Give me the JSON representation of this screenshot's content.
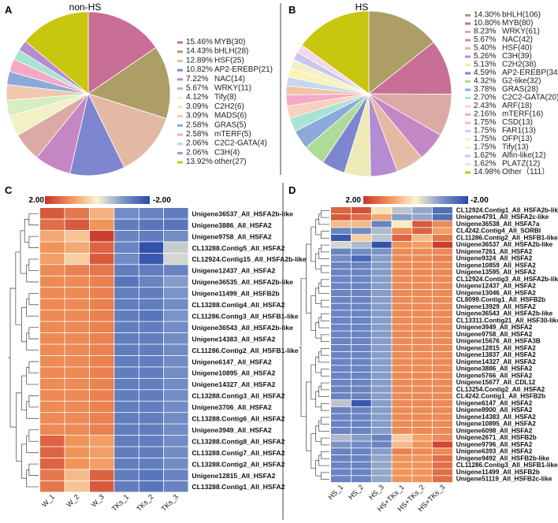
{
  "panels": {
    "A": "A",
    "B": "B",
    "C": "C",
    "D": "D"
  },
  "chart_data": [
    {
      "type": "pie",
      "panel": "A",
      "title": "non-HS",
      "slices": [
        {
          "pct": "15.46%",
          "name": "MYB(30)",
          "value": 15.46,
          "color": "#c96e96"
        },
        {
          "pct": "14.43%",
          "name": "bHLH(28)",
          "value": 14.43,
          "color": "#ad9e68"
        },
        {
          "pct": "12.89%",
          "name": "HSF(25)",
          "value": 12.89,
          "color": "#e4b9a3"
        },
        {
          "pct": "10.82%",
          "name": "AP2-EREBP(21)",
          "value": 10.82,
          "color": "#7e86cf"
        },
        {
          "pct": "7.22%",
          "name": "NAC(14)",
          "value": 7.22,
          "color": "#c487c4"
        },
        {
          "pct": "5.67%",
          "name": "WRKY(11)",
          "value": 5.67,
          "color": "#dbaaa7"
        },
        {
          "pct": "4.12%",
          "name": "Tify(8)",
          "value": 4.12,
          "color": "#f4f0c6"
        },
        {
          "pct": "3.09%",
          "name": "C2H2(6)",
          "value": 3.09,
          "color": "#d7eebf"
        },
        {
          "pct": "3.09%",
          "name": "MADS(6)",
          "value": 3.09,
          "color": "#f1c7b0"
        },
        {
          "pct": "2.58%",
          "name": "GRAS(5)",
          "value": 2.58,
          "color": "#8caad9"
        },
        {
          "pct": "2.58%",
          "name": "mTERF(5)",
          "value": 2.58,
          "color": "#f3aac6"
        },
        {
          "pct": "2.06%",
          "name": "C2C2-GATA(4)",
          "value": 2.06,
          "color": "#a9e3d3"
        },
        {
          "pct": "2.06%",
          "name": "C3H(4)",
          "value": 2.06,
          "color": "#b58cd1"
        },
        {
          "pct": "13.92%",
          "name": "other(27)",
          "value": 13.92,
          "color": "#c8c60e"
        }
      ]
    },
    {
      "type": "pie",
      "panel": "B",
      "title": "HS",
      "slices": [
        {
          "pct": "14.30%",
          "name": "bHLH(106)",
          "value": 14.3,
          "color": "#ad9e68"
        },
        {
          "pct": "10.80%",
          "name": "MYB(80)",
          "value": 10.8,
          "color": "#c96e96"
        },
        {
          "pct": "8.23%",
          "name": "WRKY(61)",
          "value": 8.23,
          "color": "#dbaaa7"
        },
        {
          "pct": "5.67%",
          "name": "NAC(42)",
          "value": 5.67,
          "color": "#c487c4"
        },
        {
          "pct": "5.40%",
          "name": "HSF(40)",
          "value": 5.4,
          "color": "#e4b9a3"
        },
        {
          "pct": "5.26%",
          "name": "C3H(39)",
          "value": 5.26,
          "color": "#b58cd1"
        },
        {
          "pct": "5.13%",
          "name": "C2H2(38)",
          "value": 5.13,
          "color": "#ecebb5"
        },
        {
          "pct": "4.59%",
          "name": "AP2-EREBP(34)",
          "value": 4.59,
          "color": "#7e86cf"
        },
        {
          "pct": "4.32%",
          "name": "G2-like(32)",
          "value": 4.32,
          "color": "#aedb9a"
        },
        {
          "pct": "3.78%",
          "name": "GRAS(28)",
          "value": 3.78,
          "color": "#8caad9"
        },
        {
          "pct": "2.70%",
          "name": "C2C2-GATA(20)",
          "value": 2.7,
          "color": "#a9e3d3"
        },
        {
          "pct": "2.43%",
          "name": "ARF(18)",
          "value": 2.43,
          "color": "#f6d1bd"
        },
        {
          "pct": "2.16%",
          "name": "mTERF(16)",
          "value": 2.16,
          "color": "#f3aac6"
        },
        {
          "pct": "1.75%",
          "name": "CSD(13)",
          "value": 1.75,
          "color": "#f0c3a8"
        },
        {
          "pct": "1.75%",
          "name": "FAR1(13)",
          "value": 1.75,
          "color": "#c5d8ee"
        },
        {
          "pct": "1.75%",
          "name": "OFP(13)",
          "value": 1.75,
          "color": "#f7f3b6"
        },
        {
          "pct": "1.75%",
          "name": "Tify(13)",
          "value": 1.75,
          "color": "#f4f0c6"
        },
        {
          "pct": "1.62%",
          "name": "Alfin-like(12)",
          "value": 1.62,
          "color": "#c9c6ee"
        },
        {
          "pct": "1.62%",
          "name": "PLATZ(12)",
          "value": 1.62,
          "color": "#f2d9ea"
        },
        {
          "pct": "14.98%",
          "name": "Other（111）",
          "value": 14.98,
          "color": "#c8c60e"
        }
      ]
    },
    {
      "type": "heatmap",
      "panel": "C",
      "color_scale": {
        "max_label": "2.00",
        "min_label": "-2.00",
        "max": 2,
        "min": -2
      },
      "columns": [
        "W_1",
        "W_2",
        "W_3",
        "TKs_1",
        "TKs_2",
        "TKs_3"
      ],
      "rows": [
        {
          "label": "Unigene36537_All_HSFA2b-like",
          "values": [
            1.6,
            1.3,
            0.7,
            -1.1,
            -1.2,
            -1.3
          ]
        },
        {
          "label": "Unigene3886_All_HSFA2",
          "values": [
            1.4,
            1.6,
            1.0,
            -1.3,
            -1.4,
            -1.4
          ]
        },
        {
          "label": "Unigene9758_All_HSFA2",
          "values": [
            0.8,
            0.5,
            1.9,
            -1.2,
            -1.3,
            -1.1
          ]
        },
        {
          "label": "CL13288.Contig5_All_HSFA2",
          "values": [
            1.0,
            0.8,
            1.5,
            -1.2,
            -1.9,
            -0.4
          ]
        },
        {
          "label": "CL12924.Contig15_All_HSFA2b-like",
          "values": [
            0.9,
            0.4,
            1.6,
            -1.1,
            -1.8,
            -0.3
          ]
        },
        {
          "label": "Unigene12437_All_HSFA2",
          "values": [
            1.1,
            1.2,
            1.3,
            -1.3,
            -1.3,
            -1.2
          ]
        },
        {
          "label": "Unigene36535_All_HSFA2b-like",
          "values": [
            1.1,
            1.1,
            1.2,
            -1.4,
            -1.2,
            -0.9
          ]
        },
        {
          "label": "Unigene11499_All_HSFB2b",
          "values": [
            1.1,
            1.1,
            1.2,
            -1.3,
            -1.3,
            -1.0
          ]
        },
        {
          "label": "CL13288.Contig4_All_HSFA2",
          "values": [
            1.1,
            1.1,
            1.2,
            -1.3,
            -1.3,
            -1.1
          ]
        },
        {
          "label": "CL11286.Contig3_All_HSFB1-like",
          "values": [
            1.1,
            1.1,
            1.2,
            -1.3,
            -1.4,
            -1.0
          ]
        },
        {
          "label": "Unigene36543_All_HSFA2b-like",
          "values": [
            1.1,
            1.1,
            1.2,
            -1.3,
            -1.3,
            -1.1
          ]
        },
        {
          "label": "Unigene14383_All_HSFA2",
          "values": [
            1.1,
            1.1,
            1.2,
            -1.3,
            -1.3,
            -1.1
          ]
        },
        {
          "label": "CL11286.Contig2_All_HSFB1-like",
          "values": [
            1.1,
            1.1,
            1.2,
            -1.3,
            -1.3,
            -1.1
          ]
        },
        {
          "label": "Unigene6147_All_HSFA2",
          "values": [
            1.1,
            1.1,
            1.2,
            -1.3,
            -1.3,
            -1.1
          ]
        },
        {
          "label": "Unigene10895_All_HSFA2",
          "values": [
            1.1,
            1.1,
            1.2,
            -1.3,
            -1.3,
            -1.1
          ]
        },
        {
          "label": "Unigene14327_All_HSFA2",
          "values": [
            1.1,
            1.1,
            1.2,
            -1.3,
            -1.3,
            -1.1
          ]
        },
        {
          "label": "CL13288.Contig3_All_HSFA2",
          "values": [
            1.1,
            1.1,
            1.2,
            -1.3,
            -1.3,
            -1.1
          ]
        },
        {
          "label": "Unigene3706_All_HSFA2",
          "values": [
            1.1,
            1.1,
            1.2,
            -1.3,
            -1.3,
            -1.1
          ]
        },
        {
          "label": "CL13288.Contig6_All_HSFA2",
          "values": [
            1.1,
            1.1,
            1.2,
            -1.3,
            -1.3,
            -1.1
          ]
        },
        {
          "label": "Unigene3949_All_HSFA2",
          "values": [
            1.1,
            1.1,
            1.2,
            -1.3,
            -1.3,
            -1.1
          ]
        },
        {
          "label": "CL13288.Contig8_All_HSFA2",
          "values": [
            1.5,
            1.0,
            0.9,
            -1.3,
            -1.3,
            -1.1
          ]
        },
        {
          "label": "CL13288.Contig7_All_HSFA2",
          "values": [
            1.5,
            1.0,
            0.9,
            -1.3,
            -1.3,
            -1.1
          ]
        },
        {
          "label": "CL13288.Contig2_All_HSFA2",
          "values": [
            1.5,
            1.0,
            0.9,
            -1.3,
            -1.3,
            -1.1
          ]
        },
        {
          "label": "Unigene12815_All_HSFA2",
          "values": [
            1.3,
            0.6,
            1.5,
            -1.3,
            -1.4,
            -1.2
          ]
        },
        {
          "label": "CL13288.Contig1_All_HSFA2",
          "values": [
            1.3,
            0.5,
            1.6,
            -1.3,
            -1.4,
            -1.2
          ]
        }
      ]
    },
    {
      "type": "heatmap",
      "panel": "D",
      "color_scale": {
        "max_label": "2.00",
        "min_label": "-2.00",
        "max": 2,
        "min": -2
      },
      "columns": [
        "HS_1",
        "HS_2",
        "HS_3",
        "HS+TKs_1",
        "HS+TKs_2",
        "HS+TKs_3"
      ],
      "rows": [
        {
          "label": "CL12924.Contig1_All_HSFA2b-like",
          "values": [
            1.5,
            1.7,
            0.2,
            -0.5,
            -0.8,
            -1.5
          ]
        },
        {
          "label": "Unigene4791_All_HSFA2c-like",
          "values": [
            1.6,
            1.4,
            0.8,
            -0.9,
            -0.8,
            -1.5
          ]
        },
        {
          "label": "Unigene36538_All_HSFA7a",
          "values": [
            0.6,
            0.6,
            -1.2,
            0.1,
            1.6,
            1.1
          ]
        },
        {
          "label": "CL4242.Contig4_All_SORBI",
          "values": [
            -1.2,
            -1.1,
            -0.6,
            1.1,
            1.5,
            0.9
          ]
        },
        {
          "label": "CL11286.Contig2_All_HSFB1-like",
          "values": [
            -1.8,
            0.4,
            -0.5,
            1.5,
            0.6,
            1.3
          ]
        },
        {
          "label": "Unigene36537_All_HSFA2b-like",
          "values": [
            -0.3,
            -0.6,
            -1.9,
            1.0,
            0.9,
            1.9
          ]
        },
        {
          "label": "Unigene7261_All_HSFA2",
          "values": [
            -1.2,
            -1.1,
            -1.0,
            1.1,
            1.1,
            1.1
          ]
        },
        {
          "label": "Unigene9324_All_HSFA2",
          "values": [
            -1.1,
            -1.6,
            -0.9,
            1.1,
            1.1,
            1.2
          ]
        },
        {
          "label": "Unigene10859_All_HSFA2",
          "values": [
            -1.2,
            -1.2,
            -0.9,
            1.1,
            1.1,
            1.1
          ]
        },
        {
          "label": "Unigene13595_All_HSFA2",
          "values": [
            -1.2,
            -1.2,
            -0.9,
            1.1,
            1.1,
            1.1
          ]
        },
        {
          "label": "CL12924.Contig3_All_HSFA2b-like",
          "values": [
            -1.2,
            -1.2,
            -0.9,
            1.1,
            1.1,
            1.1
          ]
        },
        {
          "label": "Unigene12437_All_HSFA2",
          "values": [
            -1.2,
            -1.2,
            -0.9,
            1.1,
            1.1,
            1.1
          ]
        },
        {
          "label": "Unigene13046_All_HSFA2",
          "values": [
            -1.2,
            -1.2,
            -0.9,
            1.1,
            1.1,
            1.1
          ]
        },
        {
          "label": "CL8099.Contig1_All_HSFB2b",
          "values": [
            -1.2,
            -1.2,
            -0.9,
            1.1,
            1.1,
            1.1
          ]
        },
        {
          "label": "Unigene13929_All_HSFA2",
          "values": [
            -1.2,
            -1.2,
            -0.9,
            1.1,
            1.1,
            1.1
          ]
        },
        {
          "label": "Unigene36543_All_HSFA2b-like",
          "values": [
            -1.2,
            -1.2,
            -0.9,
            1.1,
            1.1,
            1.1
          ]
        },
        {
          "label": "CL13311.Contig21_All_HSF30-like",
          "values": [
            -1.2,
            -1.2,
            -0.9,
            1.1,
            1.1,
            1.1
          ]
        },
        {
          "label": "Unigene3949_All_HSFA2",
          "values": [
            -1.2,
            -1.2,
            -0.9,
            1.1,
            1.1,
            1.1
          ]
        },
        {
          "label": "Unigene9758_All_HSFA2",
          "values": [
            -1.2,
            -1.2,
            -0.9,
            1.1,
            1.1,
            1.1
          ]
        },
        {
          "label": "Unigene15676_All_HSFA3B",
          "values": [
            -1.2,
            -1.2,
            -0.9,
            1.1,
            1.1,
            1.1
          ]
        },
        {
          "label": "Unigene12815_All_HSFA2",
          "values": [
            -1.2,
            -1.2,
            -0.9,
            1.1,
            1.1,
            1.1
          ]
        },
        {
          "label": "Unigene13837_All_HSFA2",
          "values": [
            -1.2,
            -1.2,
            -0.9,
            1.1,
            1.1,
            1.1
          ]
        },
        {
          "label": "Unigene14327_All_HSFA2",
          "values": [
            -1.2,
            -1.2,
            -0.9,
            1.1,
            1.1,
            1.1
          ]
        },
        {
          "label": "Unigene3886_All_HSFA2",
          "values": [
            -1.2,
            -1.2,
            -0.9,
            1.1,
            1.1,
            1.1
          ]
        },
        {
          "label": "Unigene5766_All_HSFA2",
          "values": [
            -1.2,
            -1.2,
            -0.9,
            1.1,
            1.1,
            1.1
          ]
        },
        {
          "label": "Unigene15677_All_CDL12",
          "values": [
            -1.2,
            -1.2,
            -0.9,
            1.1,
            1.1,
            1.1
          ]
        },
        {
          "label": "CL13254.Contig2_All_HSFA2",
          "values": [
            -1.2,
            -1.2,
            -0.9,
            1.1,
            1.1,
            1.1
          ]
        },
        {
          "label": "CL4242.Contig1_All_HSFB2b",
          "values": [
            -1.2,
            -1.2,
            -0.9,
            1.1,
            1.1,
            1.1
          ]
        },
        {
          "label": "Unigene6147_All_HSFA2",
          "values": [
            -0.5,
            -1.8,
            -0.9,
            1.1,
            1.1,
            1.1
          ]
        },
        {
          "label": "Unigene8900_All_HSFA2",
          "values": [
            -1.2,
            -1.2,
            -0.9,
            1.1,
            1.1,
            1.1
          ]
        },
        {
          "label": "Unigene14383_All_HSFA2",
          "values": [
            -1.2,
            -1.2,
            -0.9,
            1.1,
            1.1,
            1.1
          ]
        },
        {
          "label": "Unigene10895_All_HSFA2",
          "values": [
            -1.2,
            -1.2,
            -0.9,
            1.1,
            1.1,
            1.1
          ]
        },
        {
          "label": "Unigene6098_All_HSFA2",
          "values": [
            -1.2,
            -1.2,
            -0.9,
            1.1,
            1.1,
            1.1
          ]
        },
        {
          "label": "Unigene2671_All_HSFB2b",
          "values": [
            -0.6,
            -0.9,
            -1.2,
            0.4,
            0.9,
            1.1
          ]
        },
        {
          "label": "Unigene9796_All_HSFA2",
          "values": [
            -1.0,
            -1.1,
            -1.2,
            0.6,
            1.0,
            1.8
          ]
        },
        {
          "label": "Unigene6393_All_HSFA2",
          "values": [
            -1.2,
            -1.2,
            -0.9,
            1.2,
            1.1,
            1.1
          ]
        },
        {
          "label": "Unigene9492_All_HSFB2b-like",
          "values": [
            -1.2,
            -1.2,
            -0.8,
            1.0,
            1.0,
            1.4
          ]
        },
        {
          "label": "CL11286.Contig3_All_HSFB1-like",
          "values": [
            -1.2,
            -1.2,
            -0.8,
            1.0,
            1.0,
            1.4
          ]
        },
        {
          "label": "Unigene11499_All_HSFB2b",
          "values": [
            -1.2,
            -1.2,
            -0.8,
            1.0,
            1.0,
            1.4
          ]
        },
        {
          "label": "Unigene51119_All_HSFB2c-like",
          "values": [
            -1.2,
            -1.2,
            -0.8,
            1.0,
            1.0,
            1.4
          ]
        }
      ]
    }
  ]
}
